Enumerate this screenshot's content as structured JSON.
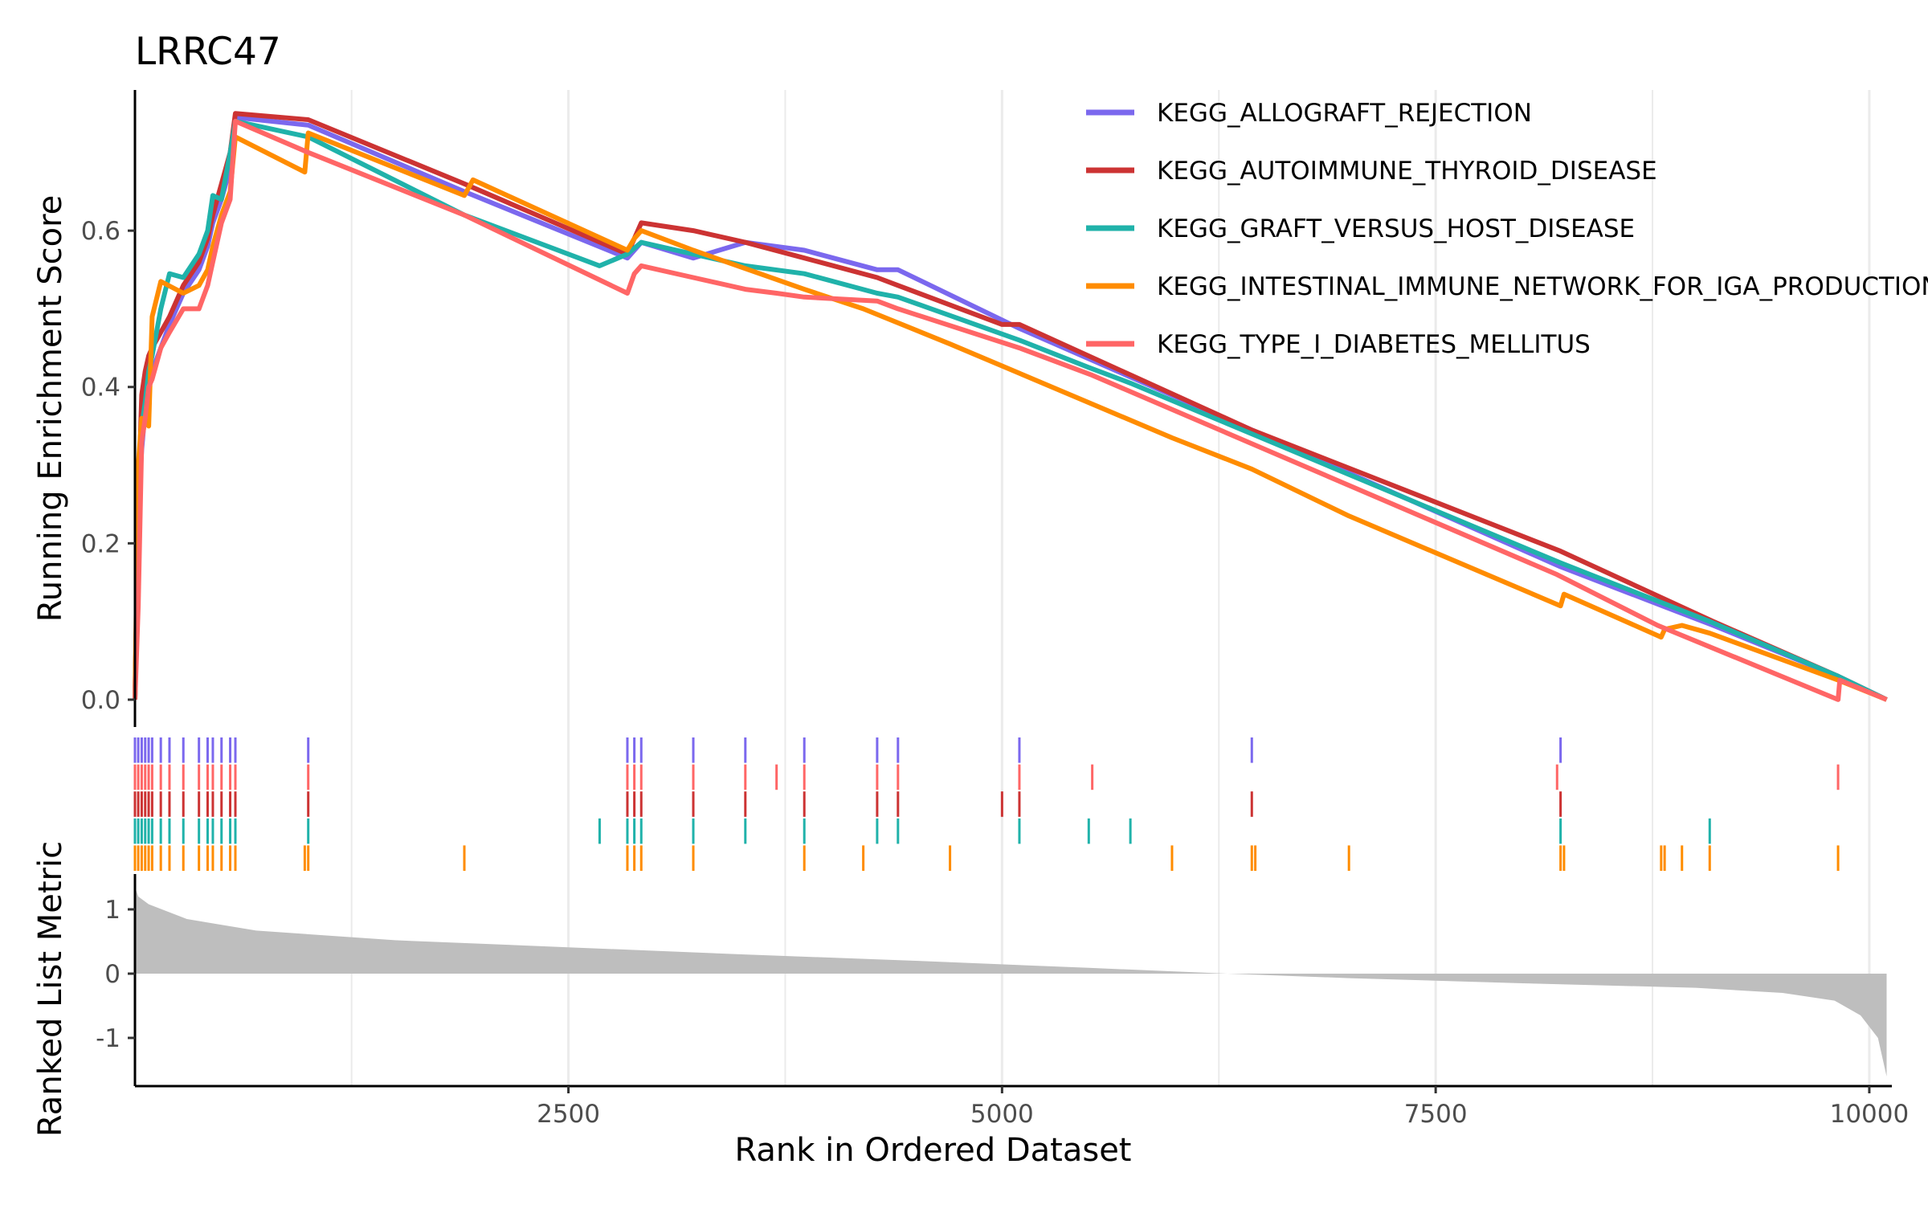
{
  "chart_data": {
    "type": "line",
    "title": "LRRC47",
    "xlabel": "Rank in Ordered Dataset",
    "top_panel": {
      "ylabel": "Running Enrichment Score",
      "ylim": [
        -0.035,
        0.78
      ],
      "yticks": [
        0.0,
        0.2,
        0.4,
        0.6
      ],
      "ytick_labels": [
        "0.0",
        "0.2",
        "0.4",
        "0.6"
      ]
    },
    "bottom_panel": {
      "ylabel": "Ranked List Metric",
      "ylim": [
        -1.75,
        1.55
      ],
      "yticks": [
        1,
        0,
        -1
      ],
      "ytick_labels": [
        "1",
        "0",
        "-1"
      ],
      "metric_curve": [
        [
          1,
          1.35
        ],
        [
          20,
          1.2
        ],
        [
          80,
          1.08
        ],
        [
          300,
          0.85
        ],
        [
          700,
          0.67
        ],
        [
          1500,
          0.52
        ],
        [
          2500,
          0.41
        ],
        [
          3500,
          0.3
        ],
        [
          4500,
          0.2
        ],
        [
          5500,
          0.09
        ],
        [
          6300,
          0.0
        ],
        [
          7000,
          -0.07
        ],
        [
          8000,
          -0.15
        ],
        [
          9000,
          -0.22
        ],
        [
          9500,
          -0.3
        ],
        [
          9800,
          -0.42
        ],
        [
          9950,
          -0.65
        ],
        [
          10050,
          -1.0
        ],
        [
          10100,
          -1.6
        ]
      ]
    },
    "xlim": [
      1,
      10130
    ],
    "xticks": [
      2500,
      5000,
      7500,
      10000
    ],
    "xtick_labels": [
      "2500",
      "5000",
      "7500",
      "10000"
    ],
    "grid": true,
    "legend": "top-right",
    "series": [
      {
        "name": "KEGG_ALLOGRAFT_REJECTION",
        "color": "#7B68EE",
        "hits": [
          1,
          20,
          40,
          60,
          80,
          100,
          150,
          200,
          280,
          370,
          420,
          450,
          500,
          550,
          580,
          1000,
          2840,
          2880,
          2920,
          3220,
          3520,
          3860,
          4280,
          4400,
          5100,
          6440,
          8220
        ],
        "points": [
          [
            1,
            0.0
          ],
          [
            20,
            0.24
          ],
          [
            40,
            0.32
          ],
          [
            60,
            0.37
          ],
          [
            80,
            0.4
          ],
          [
            100,
            0.42
          ],
          [
            150,
            0.45
          ],
          [
            200,
            0.48
          ],
          [
            280,
            0.52
          ],
          [
            370,
            0.55
          ],
          [
            420,
            0.58
          ],
          [
            450,
            0.61
          ],
          [
            500,
            0.64
          ],
          [
            550,
            0.68
          ],
          [
            580,
            0.745
          ],
          [
            1000,
            0.735
          ],
          [
            1900,
            0.65
          ],
          [
            2840,
            0.565
          ],
          [
            2920,
            0.585
          ],
          [
            3220,
            0.565
          ],
          [
            3520,
            0.585
          ],
          [
            3860,
            0.575
          ],
          [
            4280,
            0.55
          ],
          [
            4400,
            0.55
          ],
          [
            5100,
            0.475
          ],
          [
            6440,
            0.345
          ],
          [
            8220,
            0.17
          ],
          [
            9100,
            0.095
          ],
          [
            9820,
            0.03
          ],
          [
            10100,
            0.0
          ]
        ]
      },
      {
        "name": "KEGG_AUTOIMMUNE_THYROID_DISEASE",
        "color": "#CC3333",
        "hits": [
          1,
          20,
          40,
          60,
          80,
          100,
          150,
          200,
          280,
          370,
          420,
          450,
          500,
          550,
          580,
          1000,
          2840,
          2880,
          2920,
          3220,
          3520,
          3860,
          4280,
          4400,
          5000,
          5100,
          6440,
          8220
        ],
        "points": [
          [
            1,
            0.0
          ],
          [
            20,
            0.25
          ],
          [
            40,
            0.39
          ],
          [
            60,
            0.42
          ],
          [
            80,
            0.44
          ],
          [
            100,
            0.45
          ],
          [
            150,
            0.47
          ],
          [
            200,
            0.49
          ],
          [
            280,
            0.53
          ],
          [
            370,
            0.56
          ],
          [
            420,
            0.59
          ],
          [
            450,
            0.62
          ],
          [
            500,
            0.66
          ],
          [
            550,
            0.7
          ],
          [
            580,
            0.75
          ],
          [
            1000,
            0.742
          ],
          [
            1900,
            0.66
          ],
          [
            2840,
            0.57
          ],
          [
            2920,
            0.61
          ],
          [
            3220,
            0.6
          ],
          [
            3520,
            0.585
          ],
          [
            3860,
            0.565
          ],
          [
            4280,
            0.54
          ],
          [
            4400,
            0.53
          ],
          [
            5000,
            0.48
          ],
          [
            5100,
            0.48
          ],
          [
            6440,
            0.345
          ],
          [
            8220,
            0.19
          ],
          [
            9100,
            0.1
          ],
          [
            9820,
            0.03
          ],
          [
            10100,
            0.0
          ]
        ]
      },
      {
        "name": "KEGG_GRAFT_VERSUS_HOST_DISEASE",
        "color": "#20B2AA",
        "hits": [
          1,
          20,
          40,
          60,
          80,
          100,
          150,
          200,
          280,
          370,
          420,
          450,
          500,
          550,
          580,
          1000,
          2680,
          2840,
          2880,
          2920,
          3220,
          3520,
          3860,
          4280,
          4400,
          5100,
          5500,
          5740,
          8220,
          9080
        ],
        "points": [
          [
            1,
            0.0
          ],
          [
            20,
            0.2
          ],
          [
            40,
            0.35
          ],
          [
            60,
            0.38
          ],
          [
            80,
            0.42
          ],
          [
            100,
            0.44
          ],
          [
            150,
            0.5
          ],
          [
            200,
            0.545
          ],
          [
            280,
            0.54
          ],
          [
            370,
            0.57
          ],
          [
            420,
            0.6
          ],
          [
            450,
            0.645
          ],
          [
            500,
            0.64
          ],
          [
            550,
            0.7
          ],
          [
            580,
            0.74
          ],
          [
            1000,
            0.72
          ],
          [
            1900,
            0.62
          ],
          [
            2680,
            0.555
          ],
          [
            2840,
            0.57
          ],
          [
            2920,
            0.585
          ],
          [
            3220,
            0.57
          ],
          [
            3520,
            0.555
          ],
          [
            3860,
            0.545
          ],
          [
            4280,
            0.52
          ],
          [
            4400,
            0.515
          ],
          [
            5100,
            0.46
          ],
          [
            5500,
            0.425
          ],
          [
            5740,
            0.405
          ],
          [
            8220,
            0.175
          ],
          [
            9080,
            0.1
          ],
          [
            9820,
            0.03
          ],
          [
            10100,
            0.0
          ]
        ]
      },
      {
        "name": "KEGG_INTESTINAL_IMMUNE_NETWORK_FOR_IGA_PRODUCTION",
        "color": "#FF8C00",
        "hits": [
          1,
          20,
          40,
          60,
          80,
          100,
          150,
          200,
          280,
          370,
          420,
          450,
          500,
          550,
          580,
          980,
          1000,
          1900,
          2840,
          2880,
          2920,
          3220,
          3860,
          4200,
          4700,
          5980,
          6440,
          6460,
          7000,
          8220,
          8240,
          8800,
          8820,
          8920,
          9080,
          9820
        ],
        "points": [
          [
            1,
            0.0
          ],
          [
            20,
            0.3
          ],
          [
            40,
            0.36
          ],
          [
            80,
            0.35
          ],
          [
            100,
            0.49
          ],
          [
            150,
            0.535
          ],
          [
            280,
            0.52
          ],
          [
            370,
            0.53
          ],
          [
            420,
            0.55
          ],
          [
            450,
            0.58
          ],
          [
            500,
            0.62
          ],
          [
            550,
            0.65
          ],
          [
            580,
            0.72
          ],
          [
            980,
            0.675
          ],
          [
            1000,
            0.725
          ],
          [
            1900,
            0.645
          ],
          [
            1950,
            0.665
          ],
          [
            2840,
            0.575
          ],
          [
            2880,
            0.59
          ],
          [
            2920,
            0.6
          ],
          [
            3220,
            0.575
          ],
          [
            3860,
            0.525
          ],
          [
            4200,
            0.5
          ],
          [
            4700,
            0.455
          ],
          [
            5980,
            0.335
          ],
          [
            6440,
            0.295
          ],
          [
            7000,
            0.235
          ],
          [
            8220,
            0.12
          ],
          [
            8240,
            0.135
          ],
          [
            8800,
            0.08
          ],
          [
            8820,
            0.09
          ],
          [
            8920,
            0.095
          ],
          [
            9080,
            0.085
          ],
          [
            9820,
            0.025
          ],
          [
            10100,
            0.0
          ]
        ]
      },
      {
        "name": "KEGG_TYPE_I_DIABETES_MELLITUS",
        "color": "#FF6666",
        "hits": [
          1,
          20,
          40,
          60,
          80,
          100,
          150,
          200,
          280,
          370,
          420,
          450,
          500,
          550,
          580,
          1000,
          2840,
          2880,
          2920,
          3220,
          3520,
          3700,
          3860,
          4280,
          4400,
          5100,
          5520,
          8200,
          9820
        ],
        "points": [
          [
            1,
            0.0
          ],
          [
            20,
            0.12
          ],
          [
            40,
            0.33
          ],
          [
            60,
            0.36
          ],
          [
            80,
            0.4
          ],
          [
            100,
            0.41
          ],
          [
            150,
            0.45
          ],
          [
            200,
            0.47
          ],
          [
            280,
            0.5
          ],
          [
            370,
            0.5
          ],
          [
            420,
            0.53
          ],
          [
            450,
            0.56
          ],
          [
            500,
            0.61
          ],
          [
            550,
            0.64
          ],
          [
            580,
            0.74
          ],
          [
            1000,
            0.7
          ],
          [
            1900,
            0.62
          ],
          [
            2840,
            0.52
          ],
          [
            2880,
            0.545
          ],
          [
            2920,
            0.555
          ],
          [
            3220,
            0.54
          ],
          [
            3520,
            0.525
          ],
          [
            3700,
            0.52
          ],
          [
            3860,
            0.515
          ],
          [
            4280,
            0.51
          ],
          [
            4400,
            0.5
          ],
          [
            5100,
            0.45
          ],
          [
            5520,
            0.415
          ],
          [
            8200,
            0.16
          ],
          [
            8780,
            0.095
          ],
          [
            9820,
            0.0
          ],
          [
            9830,
            0.025
          ],
          [
            10100,
            0.0
          ]
        ]
      }
    ]
  }
}
